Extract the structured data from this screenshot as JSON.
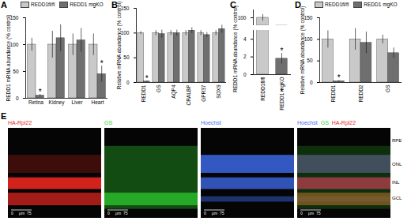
{
  "chart_data": [
    {
      "panel": "A",
      "type": "bar",
      "ylabel": "REDD1 mRNA abundance (% control)",
      "categories": [
        "Retina",
        "Kidney",
        "Liver",
        "Heart"
      ],
      "series": [
        {
          "name": "REDD1fl/fl",
          "color": "#c9c9c9",
          "values": [
            100,
            100,
            100,
            100
          ],
          "errors": [
            12,
            25,
            20,
            20
          ]
        },
        {
          "name": "REDD1 mgKO",
          "color": "#6f6f6f",
          "values": [
            5,
            112,
            108,
            45
          ],
          "errors": [
            2,
            25,
            22,
            15
          ],
          "annotations": [
            "*",
            null,
            null,
            "*"
          ]
        }
      ],
      "ylim": [
        0,
        150
      ],
      "yticks": [
        0,
        50,
        100,
        150
      ],
      "legend": "top"
    },
    {
      "panel": "B",
      "type": "bar",
      "ylabel": "Relative mRNA abundance (% control)",
      "categories": [
        "REDD1",
        "GS",
        "AQP4",
        "CRALBP",
        "GPR37",
        "SOX9"
      ],
      "series": [
        {
          "color": "#c9c9c9",
          "values": [
            100,
            100,
            100,
            100,
            100,
            100
          ],
          "errors": [
            3,
            5,
            5,
            5,
            5,
            5
          ]
        },
        {
          "color": "#6f6f6f",
          "values": [
            2,
            98,
            100,
            105,
            96,
            108
          ],
          "errors": [
            1,
            8,
            6,
            6,
            5,
            8
          ],
          "annotations": [
            "*",
            null,
            null,
            null,
            null,
            null
          ]
        }
      ],
      "ylim": [
        0,
        150
      ],
      "yticks": [
        0,
        50,
        100,
        150
      ]
    },
    {
      "panel": "C",
      "type": "bar",
      "ylabel": "REDD1 mRNA abundance (% control)",
      "categories": [
        "REDD1fl/fl",
        "REDD1 mgKO"
      ],
      "values": [
        100,
        1.8
      ],
      "errors": [
        4,
        0.6
      ],
      "colors": [
        "#c9c9c9",
        "#6f6f6f"
      ],
      "annotations": [
        null,
        "*"
      ],
      "axis_segments": [
        {
          "ylim": [
            90,
            110
          ],
          "yticks": [
            100
          ]
        },
        {
          "ylim": [
            0,
            5
          ],
          "yticks": [
            0,
            2,
            4
          ]
        }
      ]
    },
    {
      "panel": "D",
      "type": "bar",
      "ylabel": "Relative mRNA abundance (% control)",
      "categories": [
        "REDD1",
        "REDD2",
        "GS"
      ],
      "series": [
        {
          "name": "REDD1fl/fl",
          "color": "#c9c9c9",
          "values": [
            100,
            100,
            100
          ],
          "errors": [
            20,
            25,
            10
          ]
        },
        {
          "name": "REDD1 mgKO",
          "color": "#6f6f6f",
          "values": [
            3,
            92,
            68
          ],
          "errors": [
            2,
            25,
            12
          ],
          "annotations": [
            "*",
            null,
            null
          ]
        }
      ],
      "ylim": [
        0,
        150
      ],
      "yticks": [
        0,
        50,
        100,
        150
      ],
      "legend": "top"
    }
  ],
  "panel_e": {
    "panel": "E",
    "images": [
      {
        "channels": [
          {
            "label": "HA-Rpl22",
            "color": "#e8261f"
          }
        ]
      },
      {
        "channels": [
          {
            "label": "GS",
            "color": "#2fd12f"
          }
        ]
      },
      {
        "channels": [
          {
            "label": "Hoechst",
            "color": "#3f6df0"
          }
        ]
      },
      {
        "channels": [
          {
            "label": "Hoechst",
            "color": "#3f6df0"
          },
          {
            "label": "GS",
            "color": "#2fd12f"
          },
          {
            "label": "HA-Rpl22",
            "color": "#e8261f"
          }
        ]
      }
    ],
    "scale_bar_texts": [
      "0",
      "μm",
      "75"
    ],
    "layers": [
      "RPE",
      "ONL",
      "INL",
      "GCL"
    ]
  }
}
